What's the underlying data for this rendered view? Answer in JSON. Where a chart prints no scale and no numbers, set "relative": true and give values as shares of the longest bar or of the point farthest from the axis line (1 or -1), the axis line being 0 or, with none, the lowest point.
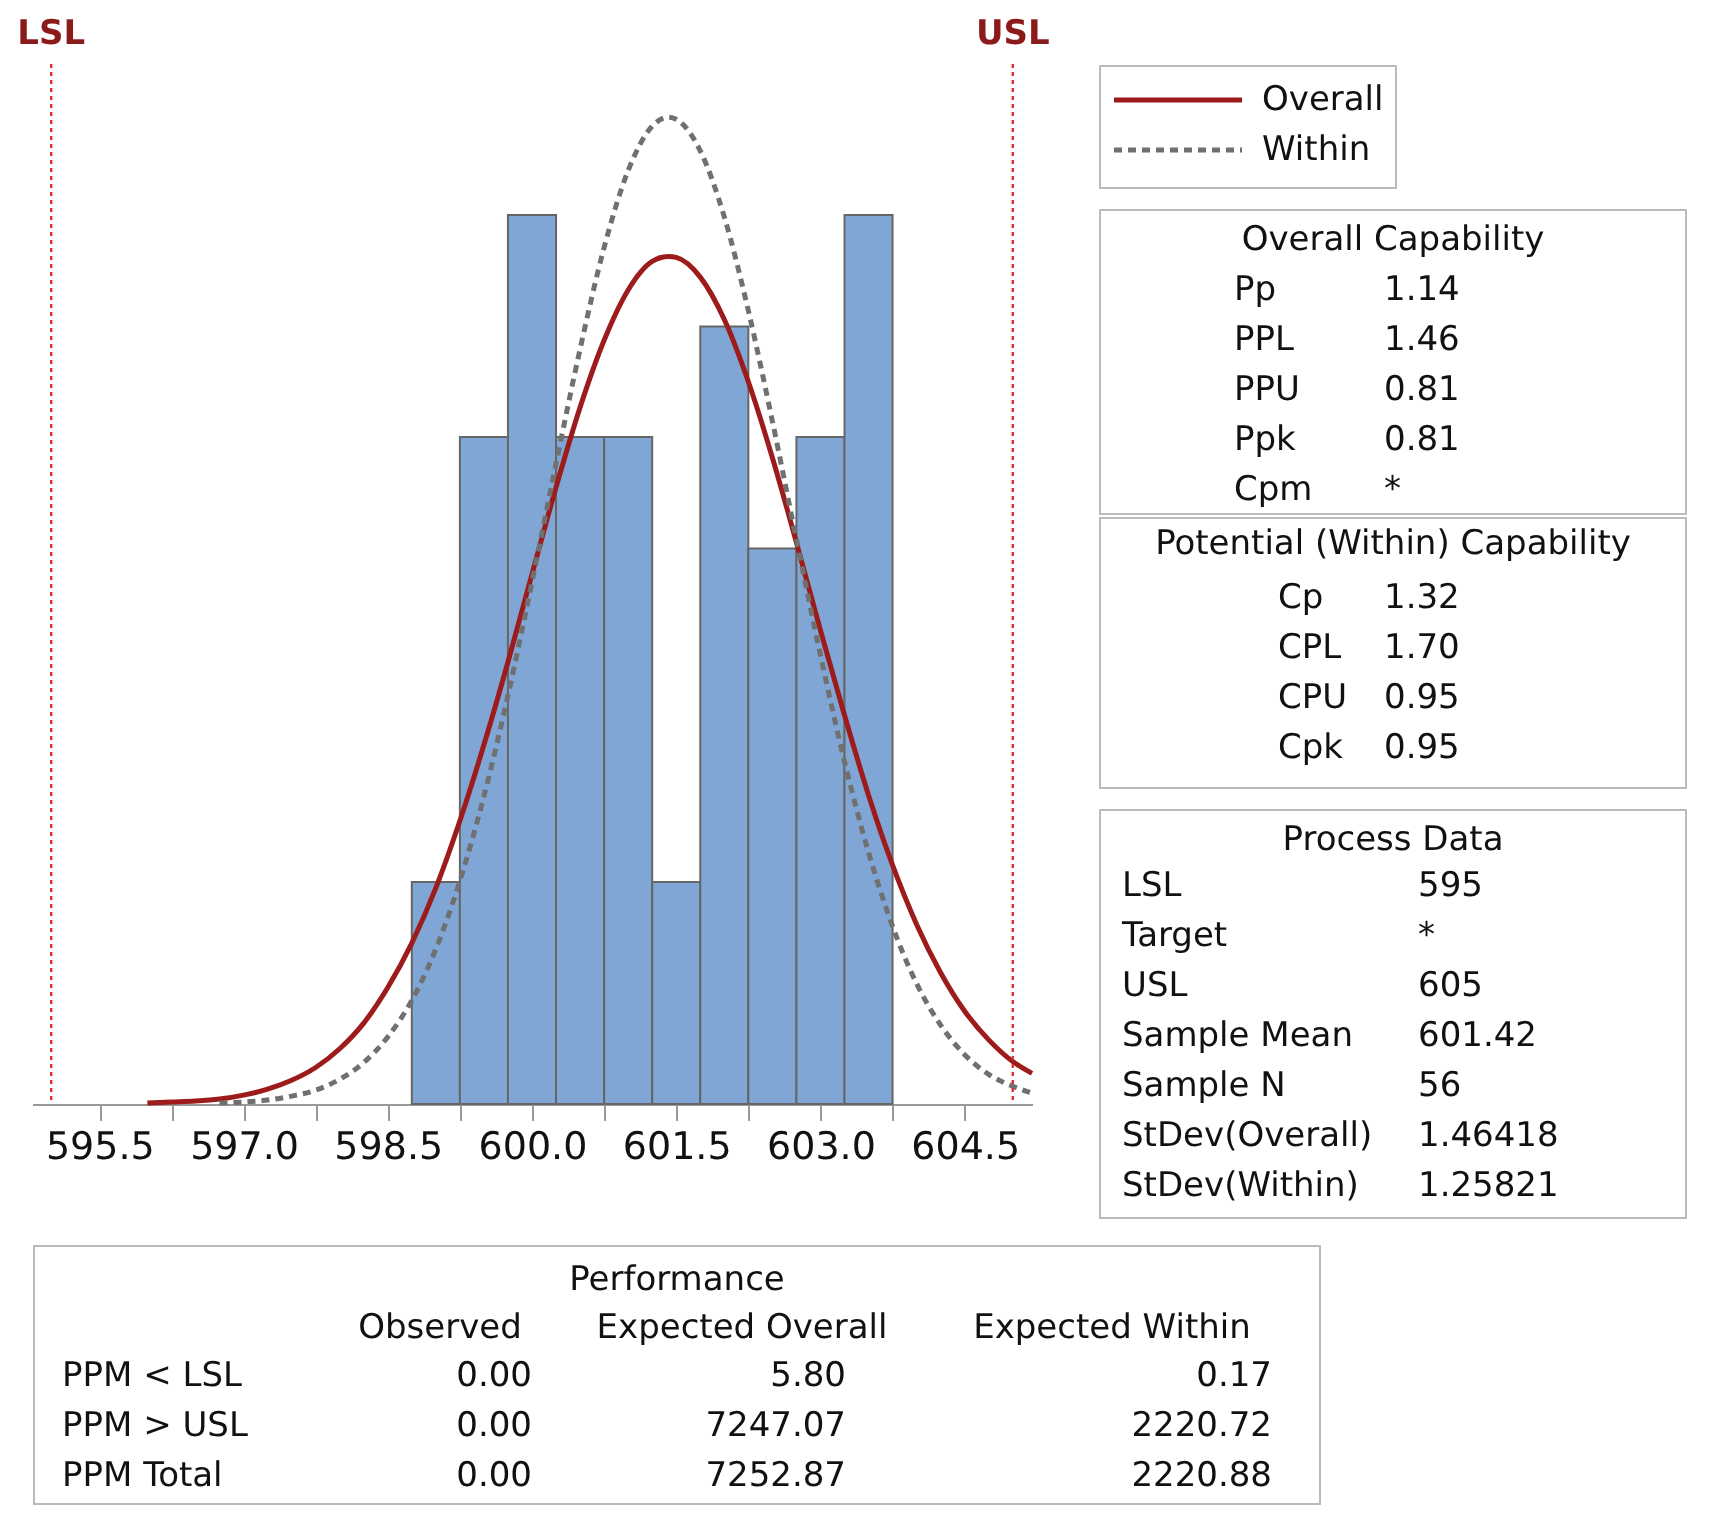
{
  "chart_data": [
    {
      "type": "histogram",
      "relative": true,
      "color": "#7fa6d5",
      "bins": [
        598.75,
        599.25,
        599.75,
        600.25,
        600.75,
        601.25,
        601.75,
        602.25,
        602.75,
        603.25,
        603.75
      ],
      "values": [
        0.225,
        0.676,
        0.901,
        0.676,
        0.676,
        0.225,
        0.788,
        0.563,
        0.676,
        0.901
      ],
      "xlim": [
        594.8,
        605.2
      ],
      "xticks": [
        {
          "value": 595.5,
          "label": "595.5"
        },
        {
          "value": 596.25,
          "label": null
        },
        {
          "value": 597,
          "label": "597.0"
        },
        {
          "value": 597.75,
          "label": null
        },
        {
          "value": 598.5,
          "label": "598.5"
        },
        {
          "value": 599.25,
          "label": null
        },
        {
          "value": 600,
          "label": "600.0"
        },
        {
          "value": 600.75,
          "label": null
        },
        {
          "value": 601.5,
          "label": "601.5"
        },
        {
          "value": 602.25,
          "label": null
        },
        {
          "value": 603,
          "label": "603.0"
        },
        {
          "value": 603.75,
          "label": null
        },
        {
          "value": 604.5,
          "label": "604.5"
        }
      ],
      "series": [
        {
          "name": "Overall",
          "type": "line",
          "color": "#9e1b1b",
          "line_style": "solid",
          "x": [
            596.0,
            596.25,
            596.5,
            596.75,
            597.0,
            597.25,
            597.5,
            597.75,
            598.0,
            598.25,
            598.5,
            598.75,
            599.0,
            599.25,
            599.5,
            599.75,
            600.0,
            600.25,
            600.5,
            600.75,
            601.0,
            601.25,
            601.42,
            601.5,
            601.75,
            602.0,
            602.25,
            602.5,
            602.75,
            603.0,
            603.25,
            603.5,
            603.75,
            604.0,
            604.25,
            604.5,
            604.75,
            605.0,
            605.2
          ],
          "values": [
            0.001,
            0.002,
            0.003,
            0.005,
            0.009,
            0.015,
            0.024,
            0.037,
            0.056,
            0.082,
            0.118,
            0.163,
            0.219,
            0.287,
            0.364,
            0.448,
            0.537,
            0.625,
            0.706,
            0.774,
            0.825,
            0.854,
            0.859,
            0.858,
            0.838,
            0.795,
            0.732,
            0.655,
            0.569,
            0.48,
            0.394,
            0.313,
            0.242,
            0.182,
            0.133,
            0.094,
            0.065,
            0.043,
            0.031
          ]
        },
        {
          "name": "Within",
          "type": "line",
          "color": "#707070",
          "line_style": "dashed",
          "x": [
            596.75,
            597.0,
            597.25,
            597.5,
            597.75,
            598.0,
            598.25,
            598.5,
            598.75,
            599.0,
            599.25,
            599.5,
            599.75,
            600.0,
            600.25,
            600.5,
            600.75,
            601.0,
            601.25,
            601.42,
            601.5,
            601.75,
            602.0,
            602.25,
            602.5,
            602.75,
            603.0,
            603.25,
            603.5,
            603.75,
            604.0,
            604.25,
            604.5,
            604.75,
            605.0,
            605.2
          ],
          "values": [
            0.001,
            0.002,
            0.004,
            0.008,
            0.014,
            0.025,
            0.042,
            0.068,
            0.105,
            0.157,
            0.226,
            0.312,
            0.414,
            0.529,
            0.649,
            0.765,
            0.868,
            0.946,
            0.991,
            1.0,
            0.998,
            0.966,
            0.899,
            0.804,
            0.692,
            0.572,
            0.455,
            0.347,
            0.255,
            0.18,
            0.122,
            0.08,
            0.05,
            0.03,
            0.018,
            0.011
          ]
        }
      ],
      "ref_lines": [
        {
          "axis": "x",
          "value": 595,
          "label": "LSL",
          "color": "#e03030",
          "line_style": "dotted"
        },
        {
          "axis": "x",
          "value": 605,
          "label": "USL",
          "color": "#e03030",
          "line_style": "dotted"
        }
      ],
      "legend": "top right",
      "grid": false
    },
    {
      "type": "other",
      "title": "Overall Capability",
      "annotations": [
        "Pp",
        "1.14",
        "PPL",
        "1.46",
        "PPU",
        "0.81",
        "Ppk",
        "0.81",
        "Cpm",
        "*"
      ]
    },
    {
      "type": "other",
      "title": "Potential (Within) Capability",
      "annotations": [
        "Cp",
        "1.32",
        "CPL",
        "1.70",
        "CPU",
        "0.95",
        "Cpk",
        "0.95"
      ]
    },
    {
      "type": "other",
      "title": "Process Data",
      "annotations": [
        "LSL",
        "595",
        "Target",
        "*",
        "USL",
        "605",
        "Sample Mean",
        "601.42",
        "Sample N",
        "56",
        "StDev(Overall)",
        "1.46418",
        "StDev(Within)",
        "1.25821"
      ]
    },
    {
      "type": "other",
      "title": "Performance",
      "annotations": [
        "Observed",
        "Expected Overall",
        "Expected Within",
        "PPM < LSL",
        "0.00",
        "5.80",
        "0.17",
        "PPM > USL",
        "0.00",
        "7247.07",
        "2220.72",
        "PPM Total",
        "0.00",
        "7252.87",
        "2220.88"
      ]
    }
  ]
}
